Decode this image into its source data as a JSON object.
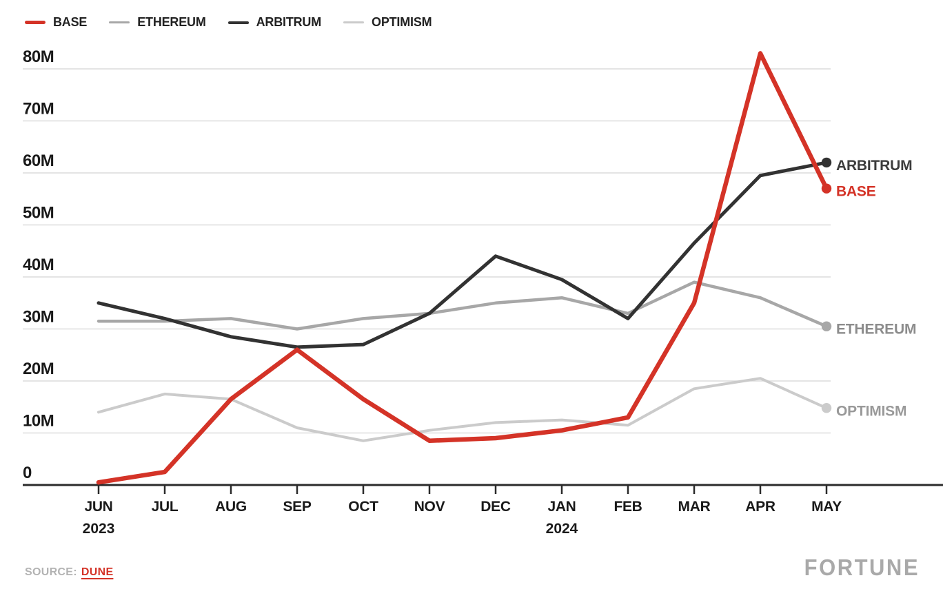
{
  "source": {
    "label": "SOURCE:",
    "link_label": "DUNE"
  },
  "branding": {
    "logo": "FORTUNE"
  },
  "chart_data": {
    "type": "line",
    "title": "",
    "x_categories": [
      "JUN",
      "JUL",
      "AUG",
      "SEP",
      "OCT",
      "NOV",
      "DEC",
      "JAN",
      "FEB",
      "MAR",
      "APR",
      "MAY"
    ],
    "x_sub_labels": [
      {
        "index": 0,
        "label": "2023"
      },
      {
        "index": 7,
        "label": "2024"
      }
    ],
    "y_unit": "M",
    "ylim": [
      0,
      80
    ],
    "y_ticks": [
      {
        "value": 0,
        "label": "0"
      },
      {
        "value": 10,
        "label": "10M"
      },
      {
        "value": 20,
        "label": "20M"
      },
      {
        "value": 30,
        "label": "30M"
      },
      {
        "value": 40,
        "label": "40M"
      },
      {
        "value": 50,
        "label": "50M"
      },
      {
        "value": 60,
        "label": "60M"
      },
      {
        "value": 70,
        "label": "70M"
      },
      {
        "value": 80,
        "label": "80M"
      }
    ],
    "grid": true,
    "legend_position": "top-left",
    "series": [
      {
        "name": "BASE",
        "color": "#d43327",
        "label_color": "#d43327",
        "stroke_width": 6.5,
        "z": 4,
        "values": [
          0.5,
          2.5,
          16.5,
          26,
          16.5,
          8.5,
          9,
          10.5,
          13,
          35,
          83,
          57
        ]
      },
      {
        "name": "ETHEREUM",
        "color": "#a7a7a7",
        "label_color": "#8c8c8c",
        "stroke_width": 4.5,
        "z": 2,
        "values": [
          31.5,
          31.5,
          32,
          30,
          32,
          33,
          35,
          36,
          33,
          39,
          36,
          30.5
        ]
      },
      {
        "name": "ARBITRUM",
        "color": "#323232",
        "label_color": "#3c3c3c",
        "stroke_width": 5,
        "z": 3,
        "values": [
          35,
          32,
          28.5,
          26.5,
          27,
          33,
          44,
          39.5,
          32,
          46.5,
          59.5,
          62
        ]
      },
      {
        "name": "OPTIMISM",
        "color": "#cbcbcb",
        "label_color": "#999999",
        "stroke_width": 4,
        "z": 1,
        "values": [
          14,
          17.5,
          16.5,
          11,
          8.5,
          10.5,
          12,
          12.5,
          11.5,
          18.5,
          20.5,
          14.8
        ]
      }
    ]
  }
}
